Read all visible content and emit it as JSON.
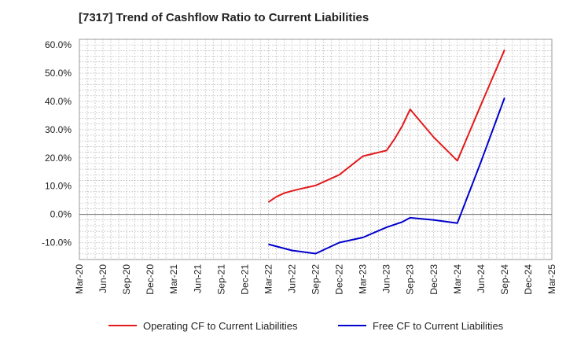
{
  "title": "[7317]  Trend of Cashflow Ratio to Current Liabilities",
  "chart_data": {
    "type": "line",
    "title": "[7317]  Trend of Cashflow Ratio to Current Liabilities",
    "xlabel": "",
    "ylabel": "",
    "categories": [
      "Mar-20",
      "Jun-20",
      "Sep-20",
      "Dec-20",
      "Mar-21",
      "Jun-21",
      "Sep-21",
      "Dec-21",
      "Mar-22",
      "Jun-22",
      "Sep-22",
      "Dec-22",
      "Mar-23",
      "Jun-23",
      "Sep-23",
      "Dec-23",
      "Mar-24",
      "Jun-24",
      "Sep-24",
      "Dec-24",
      "Mar-25"
    ],
    "yticks": [
      "60.0%",
      "50.0%",
      "40.0%",
      "30.0%",
      "20.0%",
      "10.0%",
      "0.0%",
      "-10.0%"
    ],
    "ylim": [
      -16,
      62
    ],
    "grid": true,
    "legend_position": "bottom",
    "series": [
      {
        "name": "Operating CF to Current Liabilities",
        "color": "#e31a1c",
        "points": [
          {
            "x": "Mar-22",
            "y": 4.3
          },
          {
            "x": "Apr-22",
            "y": 6.2
          },
          {
            "x": "May-22",
            "y": 7.5
          },
          {
            "x": "Jun-22",
            "y": 8.3
          },
          {
            "x": "Jul-22",
            "y": 9.0
          },
          {
            "x": "Aug-22",
            "y": 9.6
          },
          {
            "x": "Sep-22",
            "y": 10.2
          },
          {
            "x": "Dec-22",
            "y": 14.0
          },
          {
            "x": "Mar-23",
            "y": 20.6
          },
          {
            "x": "Jun-23",
            "y": 22.6
          },
          {
            "x": "Jul-23",
            "y": 26.6
          },
          {
            "x": "Aug-23",
            "y": 31.3
          },
          {
            "x": "Sep-23",
            "y": 37.2
          },
          {
            "x": "Dec-23",
            "y": 27.3
          },
          {
            "x": "Mar-24",
            "y": 19.0
          },
          {
            "x": "Jun-24",
            "y": 38.8
          },
          {
            "x": "Sep-24",
            "y": 58.3
          }
        ]
      },
      {
        "name": "Free CF to Current Liabilities",
        "color": "#0000cc",
        "points": [
          {
            "x": "Mar-22",
            "y": -10.6
          },
          {
            "x": "Jun-22",
            "y": -12.8
          },
          {
            "x": "Sep-22",
            "y": -13.9
          },
          {
            "x": "Dec-22",
            "y": -10.0
          },
          {
            "x": "Mar-23",
            "y": -8.2
          },
          {
            "x": "Jun-23",
            "y": -4.6
          },
          {
            "x": "Aug-23",
            "y": -2.7
          },
          {
            "x": "Sep-23",
            "y": -1.2
          },
          {
            "x": "Dec-23",
            "y": -2.0
          },
          {
            "x": "Mar-24",
            "y": -3.1
          },
          {
            "x": "Jun-24",
            "y": 18.6
          },
          {
            "x": "Sep-24",
            "y": 41.3
          }
        ]
      }
    ]
  }
}
